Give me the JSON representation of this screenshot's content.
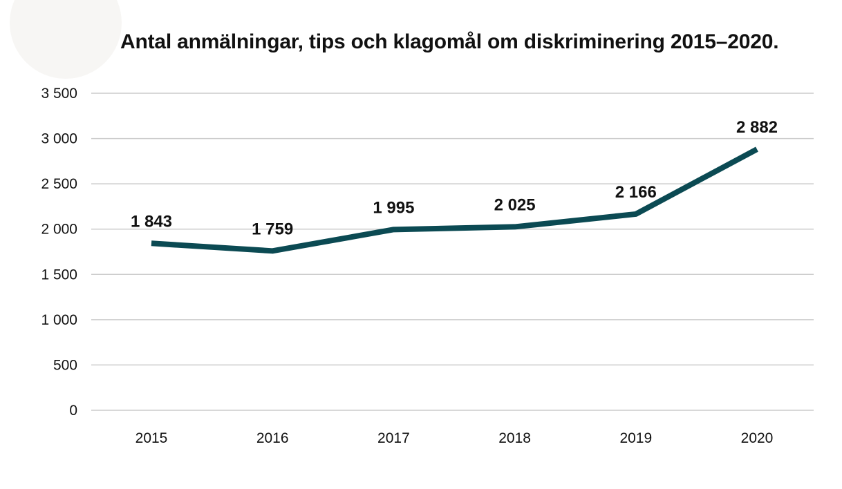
{
  "chart_data": {
    "type": "line",
    "title": "Antal anmälningar, tips och klagomål om diskriminering 2015–2020.",
    "xlabel": "",
    "ylabel": "",
    "categories": [
      "2015",
      "2016",
      "2017",
      "2018",
      "2019",
      "2020"
    ],
    "series": [
      {
        "values": [
          1843,
          1759,
          1995,
          2025,
          2166,
          2882
        ],
        "data_labels": [
          "1 843",
          "1 759",
          "1 995",
          "2 025",
          "2 166",
          "2 882"
        ],
        "color": "#0b4a53"
      }
    ],
    "ylim": [
      0,
      3500
    ],
    "yticks": [
      0,
      500,
      1000,
      1500,
      2000,
      2500,
      3000,
      3500
    ],
    "ytick_labels": [
      "0",
      "500",
      "1 000",
      "1 500",
      "2 000",
      "2 500",
      "3 000",
      "3 500"
    ],
    "grid": true,
    "grid_color": "#cccccc",
    "legend": "none"
  }
}
